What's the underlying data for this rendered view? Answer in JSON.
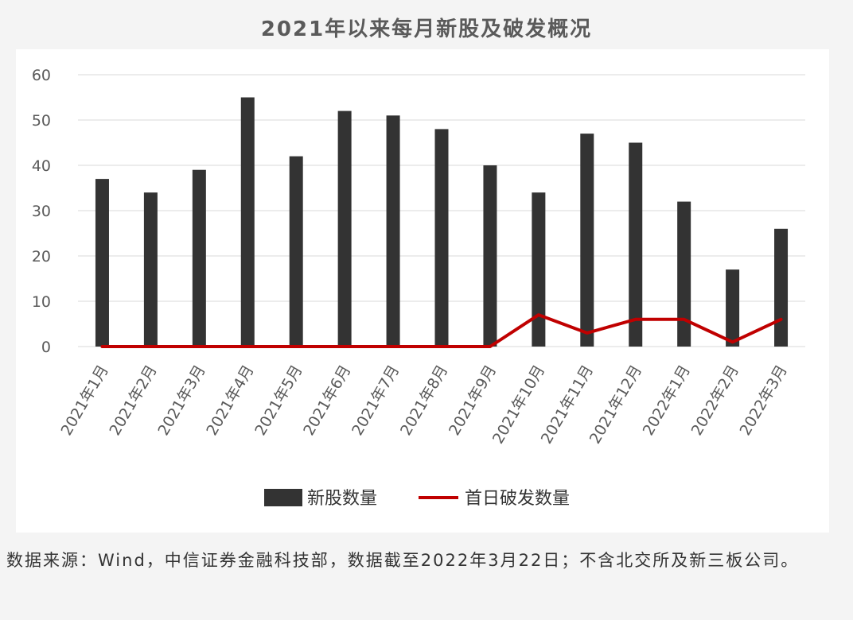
{
  "title": "2021年以来每月新股及破发概况",
  "source_note": "数据来源：Wind，中信证券金融科技部，数据截至2022年3月22日；不含北交所及新三板公司。",
  "colors": {
    "bar": "#333333",
    "line": "#c00000",
    "grid": "#d9d9d9",
    "tick": "#595959"
  },
  "chart_data": {
    "type": "bar",
    "title": "2021年以来每月新股及破发概况",
    "categories": [
      "2021年1月",
      "2021年2月",
      "2021年3月",
      "2021年4月",
      "2021年5月",
      "2021年6月",
      "2021年7月",
      "2021年8月",
      "2021年9月",
      "2021年10月",
      "2021年11月",
      "2021年12月",
      "2022年1月",
      "2022年2月",
      "2022年3月"
    ],
    "series": [
      {
        "name": "新股数量",
        "type": "bar",
        "values": [
          37,
          34,
          39,
          55,
          42,
          52,
          51,
          48,
          40,
          34,
          47,
          45,
          32,
          17,
          26
        ]
      },
      {
        "name": "首日破发数量",
        "type": "line",
        "values": [
          0,
          0,
          0,
          0,
          0,
          0,
          0,
          0,
          0,
          7,
          3,
          6,
          6,
          1,
          6
        ]
      }
    ],
    "ylim": [
      0,
      60
    ],
    "yticks": [
      0,
      10,
      20,
      30,
      40,
      50,
      60
    ],
    "grid": true,
    "legend_position": "bottom"
  }
}
